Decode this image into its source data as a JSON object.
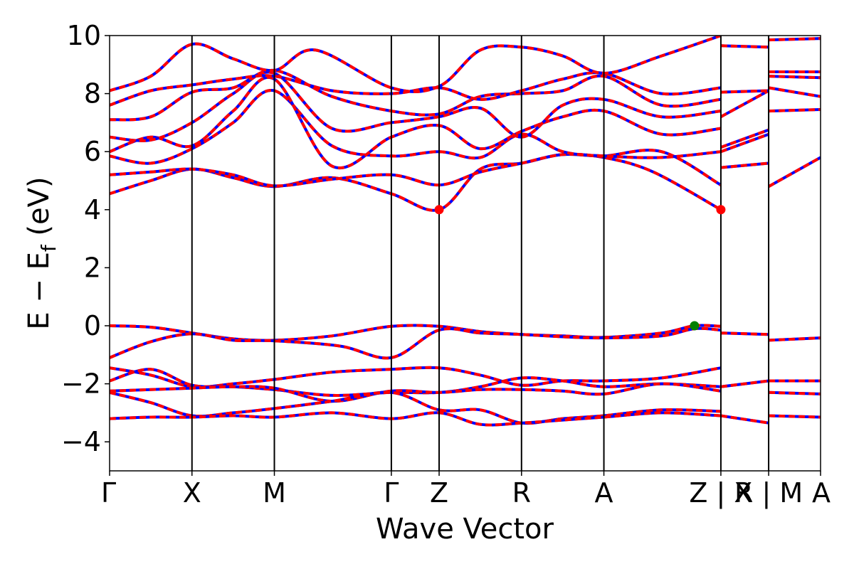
{
  "chart_data": {
    "type": "line",
    "xlabel": "Wave Vector",
    "ylabel": "E − E",
    "ylabel_sub": "f",
    "ylabel_unit": " (eV)",
    "ylim": [
      -5,
      10
    ],
    "yticks": [
      -4,
      -2,
      0,
      2,
      4,
      6,
      8,
      10
    ],
    "xlim": [
      0,
      8.63
    ],
    "high_symmetry_points": [
      {
        "label": "Γ",
        "x": 0.0
      },
      {
        "label": "X",
        "x": 1.0
      },
      {
        "label": "M",
        "x": 2.0
      },
      {
        "label": "Γ",
        "x": 3.42
      },
      {
        "label": "Z",
        "x": 4.0
      },
      {
        "label": "R",
        "x": 5.0
      },
      {
        "label": "A",
        "x": 6.0
      },
      {
        "label": "Z | X",
        "x": 7.42
      },
      {
        "label": "R | M",
        "x": 8.0
      },
      {
        "label": "A",
        "x": 8.63
      }
    ],
    "band_colors": {
      "solid": "#ff0000",
      "dashed": "#0000ff"
    },
    "cbm_markers": [
      {
        "x": 4.0,
        "y": 4.0
      },
      {
        "x": 7.42,
        "y": 4.0
      }
    ],
    "vbm_markers": [
      {
        "x": 7.1,
        "y": 0.0
      }
    ],
    "marker_colors": {
      "cbm": "#ff0000",
      "vbm": "#008000"
    },
    "valence_bands": [
      [
        [
          0,
          0
        ],
        [
          0.5,
          -0.05
        ],
        [
          1,
          -0.25
        ],
        [
          1.5,
          -0.45
        ],
        [
          2,
          -0.5
        ],
        [
          2.7,
          -0.35
        ],
        [
          3.42,
          -0.02
        ],
        [
          4,
          -0.02
        ],
        [
          4.5,
          -0.2
        ],
        [
          5,
          -0.3
        ],
        [
          5.5,
          -0.35
        ],
        [
          6,
          -0.4
        ],
        [
          6.7,
          -0.25
        ],
        [
          7.1,
          0.0
        ],
        [
          7.42,
          -0.02
        ]
      ],
      [
        [
          0,
          -1.1
        ],
        [
          0.5,
          -0.55
        ],
        [
          1,
          -0.28
        ],
        [
          1.5,
          -0.5
        ],
        [
          2,
          -0.52
        ],
        [
          2.8,
          -0.7
        ],
        [
          3.42,
          -1.1
        ],
        [
          4,
          -0.15
        ],
        [
          4.5,
          -0.25
        ],
        [
          5,
          -0.3
        ],
        [
          5.5,
          -0.38
        ],
        [
          6,
          -0.42
        ],
        [
          6.7,
          -0.35
        ],
        [
          7.1,
          -0.1
        ],
        [
          7.42,
          -0.15
        ]
      ],
      [
        [
          7.42,
          -0.25
        ],
        [
          8,
          -0.3
        ]
      ],
      [
        [
          8,
          -0.5
        ],
        [
          8.63,
          -0.42
        ]
      ],
      [
        [
          0,
          -1.45
        ],
        [
          0.5,
          -1.7
        ],
        [
          1,
          -2.1
        ],
        [
          1.5,
          -2.0
        ],
        [
          2,
          -1.85
        ],
        [
          2.7,
          -1.6
        ],
        [
          3.42,
          -1.5
        ],
        [
          4,
          -1.45
        ],
        [
          4.5,
          -1.7
        ],
        [
          5,
          -2.05
        ],
        [
          5.5,
          -1.9
        ],
        [
          6,
          -1.9
        ],
        [
          6.7,
          -1.8
        ],
        [
          7.42,
          -1.45
        ]
      ],
      [
        [
          0,
          -1.9
        ],
        [
          0.5,
          -1.5
        ],
        [
          1,
          -2.05
        ],
        [
          1.5,
          -2.1
        ],
        [
          2,
          -2.2
        ],
        [
          2.7,
          -2.4
        ],
        [
          3.42,
          -2.3
        ],
        [
          4,
          -2.3
        ],
        [
          4.5,
          -2.1
        ],
        [
          5,
          -1.8
        ],
        [
          5.5,
          -1.9
        ],
        [
          6,
          -2.1
        ],
        [
          6.7,
          -2.0
        ],
        [
          7.42,
          -2.1
        ]
      ],
      [
        [
          0,
          -2.25
        ],
        [
          0.5,
          -2.2
        ],
        [
          1,
          -2.15
        ],
        [
          1.5,
          -2.1
        ],
        [
          2,
          -2.15
        ],
        [
          2.7,
          -2.6
        ],
        [
          3.42,
          -2.25
        ],
        [
          4,
          -2.3
        ],
        [
          4.5,
          -2.2
        ],
        [
          5,
          -2.2
        ],
        [
          5.5,
          -2.25
        ],
        [
          6,
          -2.35
        ],
        [
          6.7,
          -2.0
        ],
        [
          7.42,
          -2.25
        ]
      ],
      [
        [
          0,
          -2.3
        ],
        [
          0.5,
          -2.65
        ],
        [
          1,
          -3.1
        ],
        [
          1.5,
          -3.0
        ],
        [
          2,
          -2.85
        ],
        [
          2.7,
          -2.6
        ],
        [
          3.42,
          -2.3
        ],
        [
          4,
          -2.9
        ],
        [
          4.5,
          -2.9
        ],
        [
          5,
          -3.35
        ],
        [
          5.5,
          -3.2
        ],
        [
          6,
          -3.1
        ],
        [
          6.7,
          -2.9
        ],
        [
          7.42,
          -2.95
        ]
      ],
      [
        [
          0,
          -3.2
        ],
        [
          0.5,
          -3.15
        ],
        [
          1,
          -3.15
        ],
        [
          1.5,
          -3.1
        ],
        [
          2,
          -3.15
        ],
        [
          2.7,
          -3.0
        ],
        [
          3.42,
          -3.2
        ],
        [
          4,
          -3.0
        ],
        [
          4.5,
          -3.4
        ],
        [
          5,
          -3.35
        ],
        [
          5.5,
          -3.25
        ],
        [
          6,
          -3.15
        ],
        [
          6.7,
          -3.0
        ],
        [
          7.42,
          -3.1
        ]
      ],
      [
        [
          7.42,
          -2.1
        ],
        [
          8,
          -1.9
        ]
      ],
      [
        [
          7.42,
          -3.1
        ],
        [
          8,
          -3.35
        ]
      ],
      [
        [
          8,
          -1.9
        ],
        [
          8.63,
          -1.9
        ]
      ],
      [
        [
          8,
          -2.3
        ],
        [
          8.63,
          -2.35
        ]
      ],
      [
        [
          8,
          -3.1
        ],
        [
          8.63,
          -3.15
        ]
      ]
    ],
    "conduction_bands": [
      [
        [
          0,
          4.55
        ],
        [
          0.5,
          5.0
        ],
        [
          1,
          5.4
        ],
        [
          1.5,
          5.1
        ],
        [
          2,
          4.8
        ],
        [
          2.7,
          5.1
        ],
        [
          3.42,
          4.55
        ],
        [
          4,
          4.0
        ],
        [
          4.5,
          5.4
        ],
        [
          5,
          5.6
        ],
        [
          5.5,
          5.9
        ],
        [
          6,
          5.8
        ],
        [
          6.6,
          5.3
        ],
        [
          7.42,
          4.0
        ]
      ],
      [
        [
          0,
          5.2
        ],
        [
          0.5,
          5.3
        ],
        [
          1,
          5.4
        ],
        [
          1.5,
          5.2
        ],
        [
          2,
          4.82
        ],
        [
          2.7,
          5.05
        ],
        [
          3.42,
          5.2
        ],
        [
          4,
          4.85
        ],
        [
          4.5,
          5.3
        ],
        [
          5,
          5.6
        ],
        [
          5.5,
          5.9
        ],
        [
          6,
          5.85
        ],
        [
          6.7,
          6.0
        ],
        [
          7.42,
          4.85
        ]
      ],
      [
        [
          0,
          5.85
        ],
        [
          0.5,
          5.6
        ],
        [
          1,
          6.1
        ],
        [
          1.5,
          7.0
        ],
        [
          2,
          8.1
        ],
        [
          2.7,
          6.2
        ],
        [
          3.42,
          5.85
        ],
        [
          4,
          6.0
        ],
        [
          4.5,
          5.8
        ],
        [
          5,
          6.6
        ],
        [
          5.5,
          6.0
        ],
        [
          6,
          5.85
        ],
        [
          6.7,
          5.8
        ],
        [
          7.42,
          6.0
        ]
      ],
      [
        [
          0,
          6.0
        ],
        [
          0.5,
          6.5
        ],
        [
          1,
          6.2
        ],
        [
          1.5,
          7.4
        ],
        [
          2,
          8.5
        ],
        [
          2.7,
          5.5
        ],
        [
          3.42,
          6.5
        ],
        [
          4,
          6.9
        ],
        [
          4.5,
          6.1
        ],
        [
          5,
          6.7
        ],
        [
          5.5,
          7.2
        ],
        [
          6,
          7.4
        ],
        [
          6.7,
          6.6
        ],
        [
          7.42,
          6.8
        ]
      ],
      [
        [
          0,
          6.5
        ],
        [
          0.5,
          6.4
        ],
        [
          1,
          7.0
        ],
        [
          1.5,
          8.0
        ],
        [
          2,
          8.7
        ],
        [
          2.7,
          6.8
        ],
        [
          3.42,
          7.0
        ],
        [
          4,
          7.2
        ],
        [
          4.5,
          7.5
        ],
        [
          5,
          6.5
        ],
        [
          5.5,
          7.6
        ],
        [
          6,
          7.8
        ],
        [
          6.7,
          7.2
        ],
        [
          7.42,
          7.4
        ]
      ],
      [
        [
          0,
          7.1
        ],
        [
          0.5,
          7.2
        ],
        [
          1,
          8.05
        ],
        [
          1.5,
          8.2
        ],
        [
          2,
          8.8
        ],
        [
          2.7,
          7.9
        ],
        [
          3.42,
          7.4
        ],
        [
          4,
          7.3
        ],
        [
          4.5,
          7.9
        ],
        [
          5,
          8.0
        ],
        [
          5.5,
          8.1
        ],
        [
          6,
          8.6
        ],
        [
          6.7,
          7.6
        ],
        [
          7.42,
          7.8
        ]
      ],
      [
        [
          0,
          7.6
        ],
        [
          0.5,
          8.1
        ],
        [
          1,
          8.3
        ],
        [
          1.5,
          8.5
        ],
        [
          2,
          8.6
        ],
        [
          2.7,
          8.1
        ],
        [
          3.42,
          8.0
        ],
        [
          4,
          8.2
        ],
        [
          4.5,
          7.8
        ],
        [
          5,
          8.1
        ],
        [
          5.5,
          8.5
        ],
        [
          6,
          8.7
        ],
        [
          6.7,
          8.0
        ],
        [
          7.42,
          8.2
        ]
      ],
      [
        [
          0,
          8.1
        ],
        [
          0.5,
          8.6
        ],
        [
          1,
          9.7
        ],
        [
          1.5,
          9.2
        ],
        [
          2,
          8.8
        ],
        [
          2.5,
          9.5
        ],
        [
          3.42,
          8.2
        ],
        [
          4,
          8.25
        ],
        [
          4.5,
          9.5
        ],
        [
          5,
          9.6
        ],
        [
          5.5,
          9.3
        ],
        [
          6,
          8.7
        ],
        [
          6.7,
          9.3
        ],
        [
          7.42,
          10.0
        ]
      ],
      [
        [
          7.42,
          5.45
        ],
        [
          8,
          5.6
        ]
      ],
      [
        [
          7.42,
          6.0
        ],
        [
          8,
          6.6
        ]
      ],
      [
        [
          7.42,
          6.15
        ],
        [
          8,
          6.75
        ]
      ],
      [
        [
          7.42,
          7.2
        ],
        [
          8,
          8.1
        ]
      ],
      [
        [
          7.42,
          8.05
        ],
        [
          8,
          8.1
        ]
      ],
      [
        [
          7.42,
          9.65
        ],
        [
          8,
          9.6
        ]
      ],
      [
        [
          8,
          4.8
        ],
        [
          8.63,
          5.8
        ]
      ],
      [
        [
          8,
          7.4
        ],
        [
          8.63,
          7.45
        ]
      ],
      [
        [
          8,
          8.2
        ],
        [
          8.63,
          7.9
        ]
      ],
      [
        [
          8,
          8.6
        ],
        [
          8.63,
          8.55
        ]
      ],
      [
        [
          8,
          8.75
        ],
        [
          8.63,
          8.75
        ]
      ],
      [
        [
          8,
          9.85
        ],
        [
          8.63,
          9.9
        ]
      ]
    ]
  }
}
